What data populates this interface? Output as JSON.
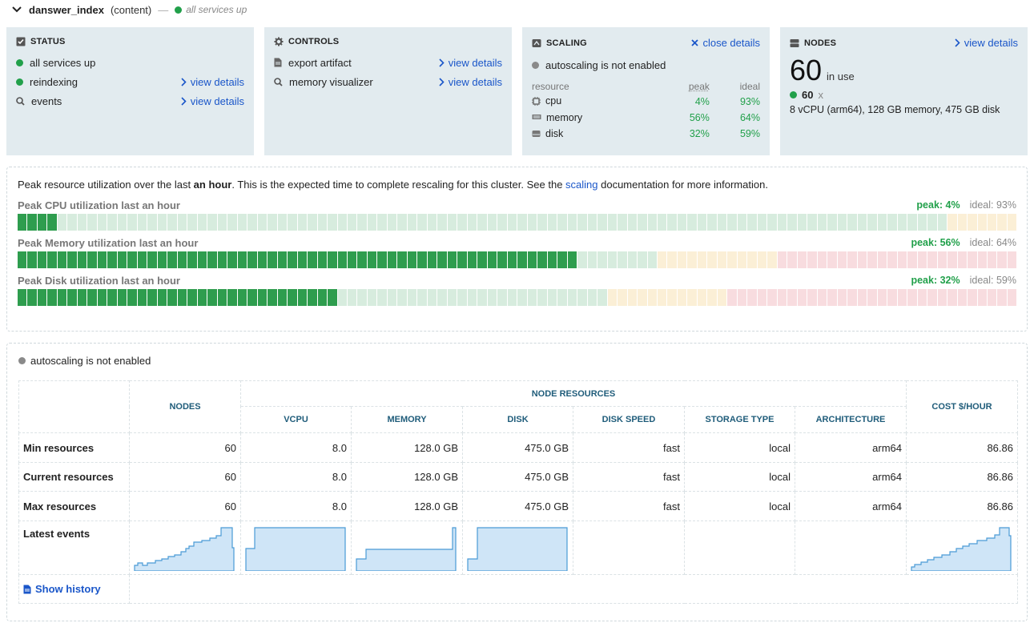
{
  "header": {
    "name": "danswer_index",
    "subtitle": "(content)",
    "dash": "—",
    "status": "all services up"
  },
  "status_card": {
    "title": "STATUS",
    "items": [
      {
        "label": "all services up",
        "link": ""
      },
      {
        "label": "reindexing",
        "link": "view details"
      },
      {
        "label": "events",
        "link": "view details"
      }
    ]
  },
  "controls_card": {
    "title": "CONTROLS",
    "items": [
      {
        "label": "export artifact",
        "link": "view details"
      },
      {
        "label": "memory visualizer",
        "link": "view details"
      }
    ]
  },
  "scaling_card": {
    "title": "SCALING",
    "close": "close details",
    "autoscale": "autoscaling is not enabled",
    "headers": {
      "resource": "resource",
      "peak": "peak",
      "ideal": "ideal"
    },
    "rows": [
      {
        "name": "cpu",
        "peak": "4%",
        "ideal": "93%"
      },
      {
        "name": "memory",
        "peak": "56%",
        "ideal": "64%"
      },
      {
        "name": "disk",
        "peak": "32%",
        "ideal": "59%"
      }
    ]
  },
  "nodes_card": {
    "title": "NODES",
    "link": "view details",
    "count": "60",
    "in_use": "in use",
    "group_count": "60",
    "group_x": "x",
    "spec": "8 vCPU (arm64), 128 GB memory, 475 GB disk"
  },
  "utilization": {
    "desc_before": "Peak resource utilization over the last ",
    "desc_bold": "an hour",
    "desc_middle": ". This is the expected time to complete rescaling for this cluster. See the ",
    "desc_link": "scaling",
    "desc_after": " documentation for more information.",
    "bars": [
      {
        "label": "Peak CPU utilization last an hour",
        "peak_text": "peak: 4%",
        "ideal_text": "ideal: 93%",
        "peak": 4,
        "ideal": 93
      },
      {
        "label": "Peak Memory utilization last an hour",
        "peak_text": "peak: 56%",
        "ideal_text": "ideal: 64%",
        "peak": 56,
        "ideal": 64
      },
      {
        "label": "Peak Disk utilization last an hour",
        "peak_text": "peak: 32%",
        "ideal_text": "ideal: 59%",
        "peak": 32,
        "ideal": 59
      }
    ]
  },
  "resources_table": {
    "autoscale": "autoscaling is not enabled",
    "headers": {
      "nodes": "NODES",
      "node_resources": "NODE RESOURCES",
      "vcpu": "VCPU",
      "memory": "MEMORY",
      "disk": "DISK",
      "disk_speed": "DISK SPEED",
      "storage_type": "STORAGE TYPE",
      "architecture": "ARCHITECTURE",
      "cost": "COST $/HOUR"
    },
    "rows": [
      {
        "label": "Min resources",
        "nodes": "60",
        "vcpu": "8.0",
        "memory": "128.0 GB",
        "disk": "475.0 GB",
        "disk_speed": "fast",
        "storage": "local",
        "arch": "arm64",
        "cost": "86.86"
      },
      {
        "label": "Current resources",
        "nodes": "60",
        "vcpu": "8.0",
        "memory": "128.0 GB",
        "disk": "475.0 GB",
        "disk_speed": "fast",
        "storage": "local",
        "arch": "arm64",
        "cost": "86.86"
      },
      {
        "label": "Max resources",
        "nodes": "60",
        "vcpu": "8.0",
        "memory": "128.0 GB",
        "disk": "475.0 GB",
        "disk_speed": "fast",
        "storage": "local",
        "arch": "arm64",
        "cost": "86.86"
      }
    ],
    "events_label": "Latest events",
    "show_history": "Show history"
  },
  "colors": {
    "green": "#21a04a",
    "link": "#1a56c9",
    "card_bg": "#e2ebef",
    "seg_peak": "#2e9d4e",
    "seg_green": "#d7ecde",
    "seg_yellow": "#fbefd6",
    "seg_red": "#f8dcdf"
  }
}
